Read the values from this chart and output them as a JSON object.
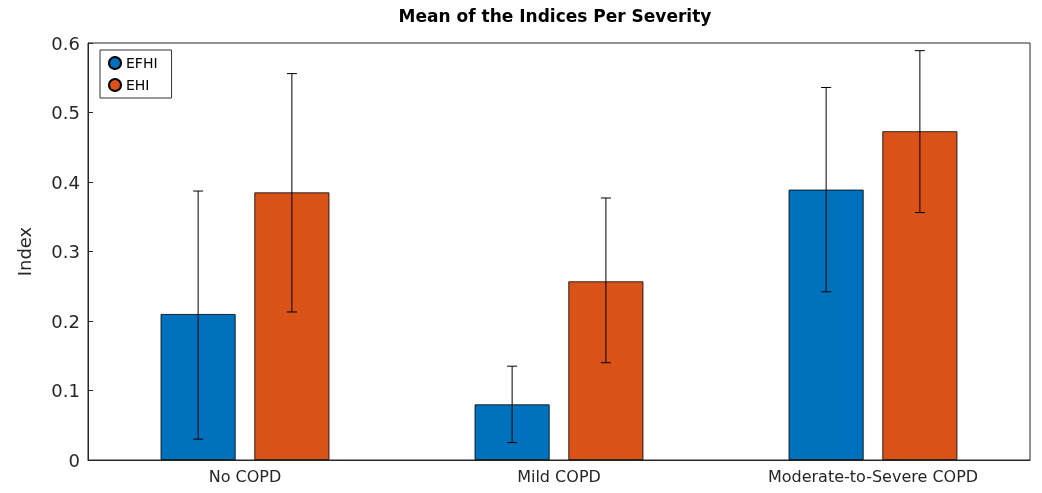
{
  "chart_data": {
    "type": "bar",
    "title": "Mean of the Indices Per Severity",
    "ylabel": "Index",
    "categories": [
      "No COPD",
      "Mild COPD",
      "Moderate-to-Severe COPD"
    ],
    "series": [
      {
        "name": "EFHI",
        "color": "#0072bd",
        "values": [
          0.21,
          0.08,
          0.389
        ],
        "errors": [
          [
            0.03,
            0.387
          ],
          [
            0.025,
            0.135
          ],
          [
            0.242,
            0.536
          ]
        ]
      },
      {
        "name": "EHI",
        "color": "#d95319",
        "values": [
          0.385,
          0.257,
          0.473
        ],
        "errors": [
          [
            0.213,
            0.556
          ],
          [
            0.14,
            0.377
          ],
          [
            0.356,
            0.589
          ]
        ]
      }
    ],
    "ylim": [
      0,
      0.6
    ],
    "yticks": [
      0,
      0.1,
      0.2,
      0.3,
      0.4,
      0.5,
      0.6
    ],
    "grid": false,
    "legend": "top left"
  }
}
